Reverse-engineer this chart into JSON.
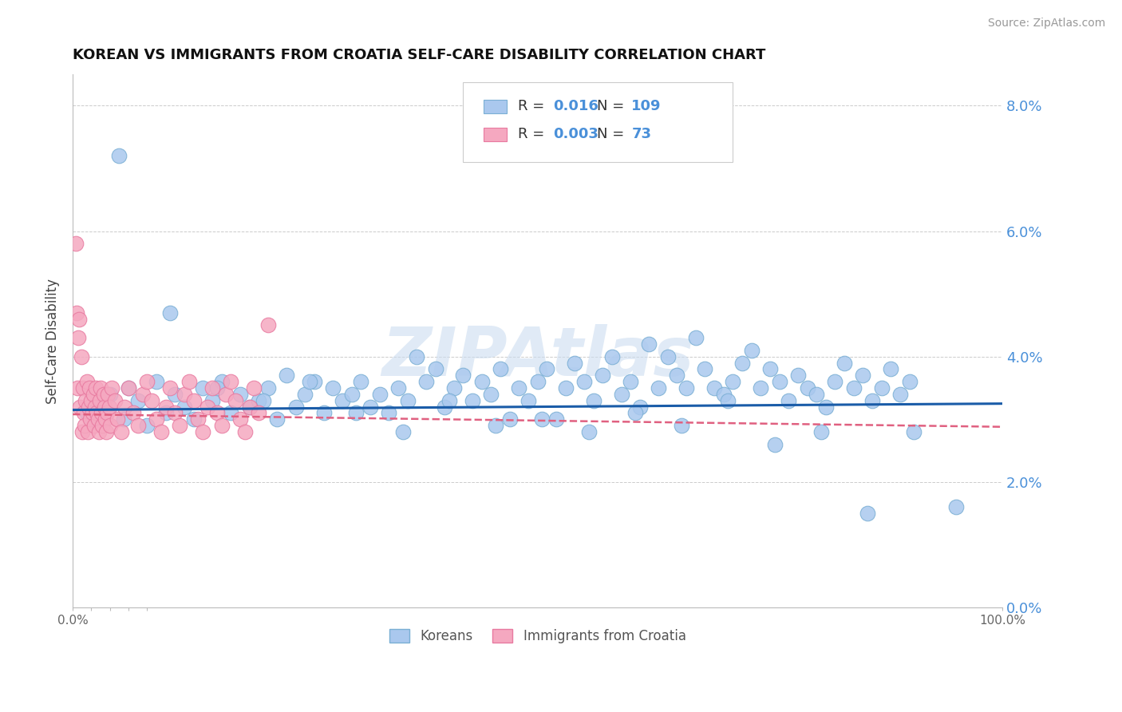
{
  "title": "KOREAN VS IMMIGRANTS FROM CROATIA SELF-CARE DISABILITY CORRELATION CHART",
  "source": "Source: ZipAtlas.com",
  "ylabel": "Self-Care Disability",
  "xlim": [
    0,
    100
  ],
  "ylim": [
    0,
    8.5
  ],
  "yticks": [
    0,
    2,
    4,
    6,
    8
  ],
  "ytick_labels": [
    "0.0%",
    "2.0%",
    "4.0%",
    "6.0%",
    "8.0%"
  ],
  "xticks": [
    0,
    20,
    40,
    60,
    80,
    100
  ],
  "xtick_labels": [
    "0.0%",
    "",
    "",
    "",
    "",
    "100.0%"
  ],
  "korean_color": "#aac8ee",
  "croatia_color": "#f5a8c0",
  "korean_edge": "#7aafd4",
  "croatia_edge": "#e87aa0",
  "trend_blue": "#1a5ca8",
  "trend_pink": "#e06080",
  "watermark_color": "#ccddf0",
  "watermark": "ZIPAtlas",
  "legend_r1": "0.016",
  "legend_n1": "109",
  "legend_r2": "0.003",
  "legend_n2": "73",
  "legend_label1": "Koreans",
  "legend_label2": "Immigrants from Croatia",
  "korean_x": [
    1.5,
    2.0,
    3.0,
    4.0,
    5.5,
    6.0,
    7.0,
    8.0,
    9.0,
    10.0,
    11.0,
    12.0,
    13.0,
    14.0,
    15.0,
    16.0,
    17.0,
    18.0,
    19.0,
    20.0,
    21.0,
    22.0,
    23.0,
    24.0,
    25.0,
    26.0,
    27.0,
    28.0,
    29.0,
    30.0,
    31.0,
    32.0,
    33.0,
    34.0,
    35.0,
    36.0,
    37.0,
    38.0,
    39.0,
    40.0,
    41.0,
    42.0,
    43.0,
    44.0,
    45.0,
    46.0,
    47.0,
    48.0,
    49.0,
    50.0,
    51.0,
    52.0,
    53.0,
    54.0,
    55.0,
    56.0,
    57.0,
    58.0,
    59.0,
    60.0,
    61.0,
    62.0,
    63.0,
    64.0,
    65.0,
    66.0,
    67.0,
    68.0,
    69.0,
    70.0,
    71.0,
    72.0,
    73.0,
    74.0,
    75.0,
    76.0,
    77.0,
    78.0,
    79.0,
    80.0,
    81.0,
    82.0,
    83.0,
    84.0,
    85.0,
    86.0,
    87.0,
    88.0,
    89.0,
    90.0,
    5.0,
    10.5,
    15.5,
    20.5,
    25.5,
    30.5,
    35.5,
    40.5,
    45.5,
    50.5,
    55.5,
    60.5,
    65.5,
    70.5,
    75.5,
    80.5,
    85.5,
    90.5,
    95.0
  ],
  "korean_y": [
    3.1,
    3.0,
    3.2,
    3.4,
    3.0,
    3.5,
    3.3,
    2.9,
    3.6,
    3.1,
    3.4,
    3.2,
    3.0,
    3.5,
    3.3,
    3.6,
    3.1,
    3.4,
    3.2,
    3.3,
    3.5,
    3.0,
    3.7,
    3.2,
    3.4,
    3.6,
    3.1,
    3.5,
    3.3,
    3.4,
    3.6,
    3.2,
    3.4,
    3.1,
    3.5,
    3.3,
    4.0,
    3.6,
    3.8,
    3.2,
    3.5,
    3.7,
    3.3,
    3.6,
    3.4,
    3.8,
    3.0,
    3.5,
    3.3,
    3.6,
    3.8,
    3.0,
    3.5,
    3.9,
    3.6,
    3.3,
    3.7,
    4.0,
    3.4,
    3.6,
    3.2,
    4.2,
    3.5,
    4.0,
    3.7,
    3.5,
    4.3,
    3.8,
    3.5,
    3.4,
    3.6,
    3.9,
    4.1,
    3.5,
    3.8,
    3.6,
    3.3,
    3.7,
    3.5,
    3.4,
    3.2,
    3.6,
    3.9,
    3.5,
    3.7,
    3.3,
    3.5,
    3.8,
    3.4,
    3.6,
    7.2,
    4.7,
    3.5,
    3.3,
    3.6,
    3.1,
    2.8,
    3.3,
    2.9,
    3.0,
    2.8,
    3.1,
    2.9,
    3.3,
    2.6,
    2.8,
    1.5,
    2.8,
    1.6
  ],
  "croatia_x": [
    0.3,
    0.4,
    0.5,
    0.6,
    0.7,
    0.8,
    0.9,
    1.0,
    1.1,
    1.2,
    1.3,
    1.4,
    1.5,
    1.6,
    1.7,
    1.8,
    1.9,
    2.0,
    2.1,
    2.2,
    2.3,
    2.4,
    2.5,
    2.6,
    2.7,
    2.8,
    2.9,
    3.0,
    3.1,
    3.2,
    3.3,
    3.4,
    3.5,
    3.6,
    3.7,
    3.8,
    3.9,
    4.0,
    4.2,
    4.5,
    4.8,
    5.2,
    5.6,
    6.0,
    6.5,
    7.0,
    7.5,
    8.0,
    8.5,
    9.0,
    9.5,
    10.0,
    10.5,
    11.0,
    11.5,
    12.0,
    12.5,
    13.0,
    13.5,
    14.0,
    14.5,
    15.0,
    15.5,
    16.0,
    16.5,
    17.0,
    17.5,
    18.0,
    18.5,
    19.0,
    19.5,
    20.0,
    21.0
  ],
  "croatia_y": [
    5.8,
    4.7,
    3.5,
    4.3,
    4.6,
    3.2,
    4.0,
    2.8,
    3.5,
    3.1,
    2.9,
    3.3,
    3.6,
    2.8,
    3.2,
    3.5,
    3.0,
    3.3,
    3.1,
    3.4,
    2.9,
    3.2,
    3.5,
    3.1,
    3.0,
    2.8,
    3.3,
    3.5,
    3.1,
    2.9,
    3.4,
    3.2,
    3.0,
    2.8,
    3.1,
    3.4,
    3.2,
    2.9,
    3.5,
    3.3,
    3.0,
    2.8,
    3.2,
    3.5,
    3.1,
    2.9,
    3.4,
    3.6,
    3.3,
    3.0,
    2.8,
    3.2,
    3.5,
    3.1,
    2.9,
    3.4,
    3.6,
    3.3,
    3.0,
    2.8,
    3.2,
    3.5,
    3.1,
    2.9,
    3.4,
    3.6,
    3.3,
    3.0,
    2.8,
    3.2,
    3.5,
    3.1,
    4.5
  ]
}
